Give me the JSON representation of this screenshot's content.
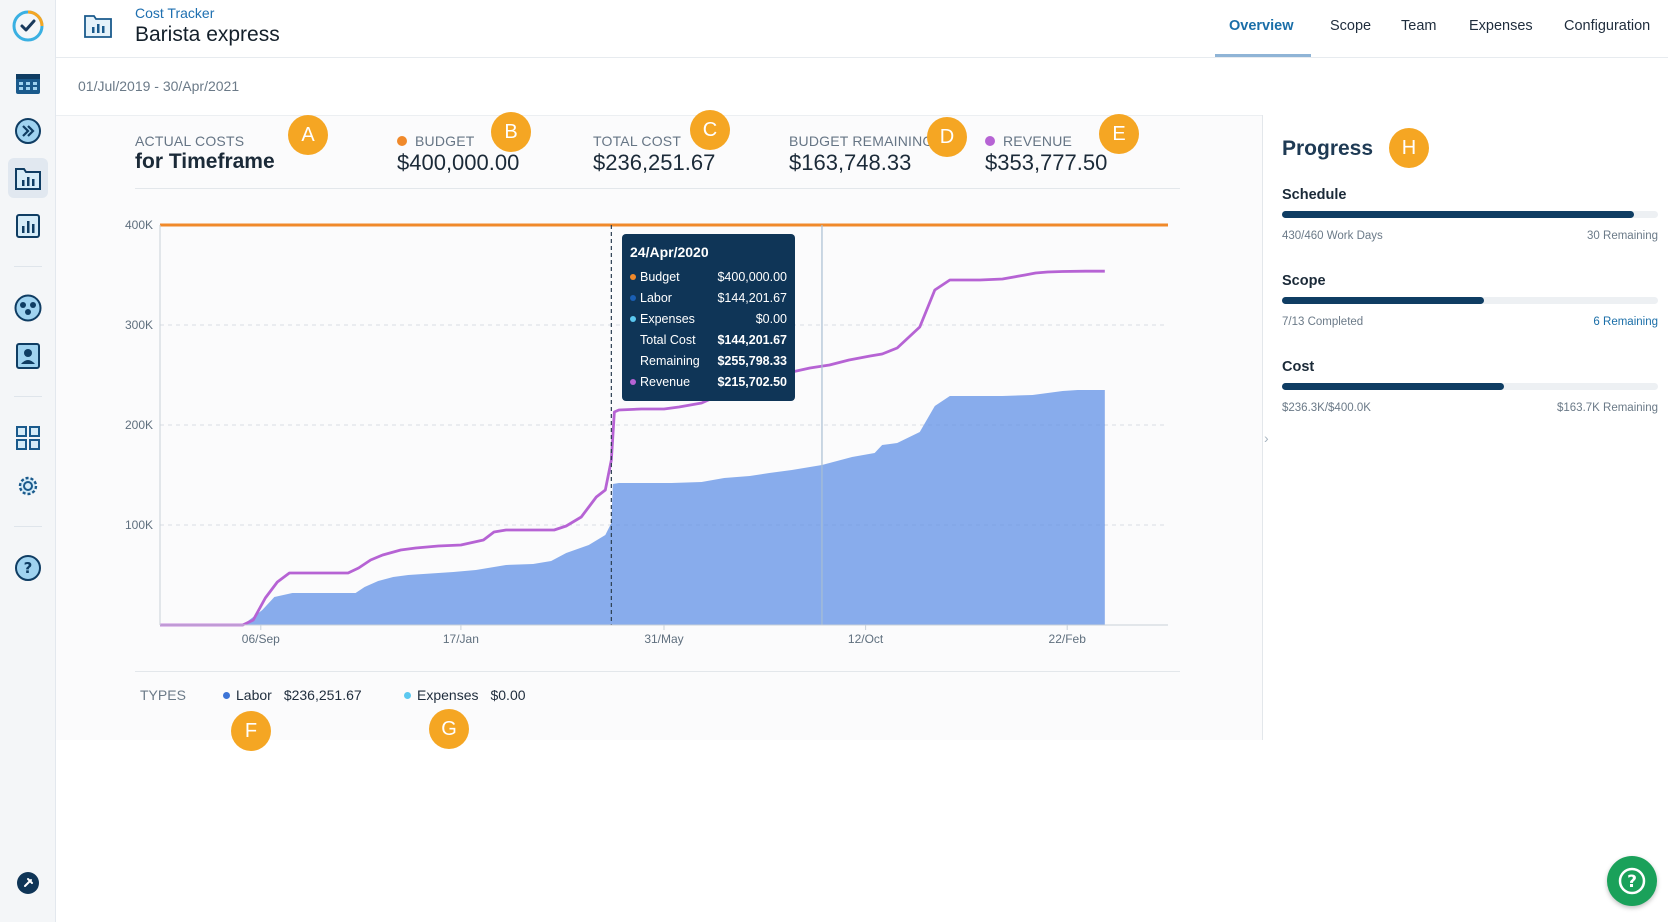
{
  "header": {
    "app_name": "Cost Tracker",
    "project_name": "Barista express",
    "tabs": [
      {
        "label": "Overview",
        "active": true
      },
      {
        "label": "Scope",
        "active": false
      },
      {
        "label": "Team",
        "active": false
      },
      {
        "label": "Expenses",
        "active": false
      },
      {
        "label": "Configuration",
        "active": false
      }
    ]
  },
  "date_range": "01/Jul/2019 - 30/Apr/2021",
  "rail": {
    "items": [
      "logo-icon",
      "calendar-icon",
      "fast-forward-icon",
      "folder-chart-icon",
      "bar-chart-icon",
      "team-icon",
      "contact-icon",
      "grid-icon",
      "gear-icon",
      "help-icon",
      "pin-icon"
    ]
  },
  "stats": {
    "actual_label": "ACTUAL COSTS",
    "actual_sub": "for Timeframe",
    "budget_label": "BUDGET",
    "budget_value": "$400,000.00",
    "total_cost_label": "TOTAL COST",
    "total_cost_value": "$236,251.67",
    "remaining_label": "BUDGET REMAINING",
    "remaining_value": "$163,748.33",
    "revenue_label": "REVENUE",
    "revenue_value": "$353,777.50"
  },
  "markers": [
    "A",
    "B",
    "C",
    "D",
    "E",
    "F",
    "G",
    "H"
  ],
  "colors": {
    "budget": "#f0892a",
    "labor": "#5b8ee6",
    "expenses": "#5bc8f0",
    "revenue": "#b663d4",
    "marker": "#f5a623",
    "navy": "#0f3557"
  },
  "chart_data": {
    "type": "area",
    "title": "",
    "xlabel": "",
    "ylabel": "",
    "x_tick_labels": [
      "06/Sep",
      "17/Jan",
      "31/May",
      "12/Oct",
      "22/Feb"
    ],
    "x_tick_days": [
      67,
      200,
      335,
      469,
      603
    ],
    "x_range_days": [
      0,
      670
    ],
    "y_ticks": [
      100000,
      200000,
      300000,
      400000
    ],
    "y_tick_labels": [
      "100K",
      "200K",
      "300K",
      "400K"
    ],
    "ylim": [
      0,
      400000
    ],
    "grid": true,
    "budget_line": 400000,
    "series": [
      {
        "name": "Labor",
        "kind": "area",
        "x": [
          0,
          55,
          68,
          76,
          88,
          100,
          130,
          136,
          145,
          155,
          165,
          175,
          185,
          195,
          210,
          230,
          248,
          260,
          270,
          285,
          296,
          300,
          301,
          305,
          320,
          340,
          360,
          375,
          392,
          405,
          420,
          440,
          460,
          475,
          480,
          490,
          505,
          515,
          525,
          545,
          560,
          580,
          590,
          600,
          610,
          625,
          628
        ],
        "y": [
          0,
          0,
          15000,
          28000,
          32000,
          32000,
          32000,
          38000,
          44000,
          48000,
          50000,
          51000,
          52000,
          53000,
          55000,
          60000,
          61000,
          64000,
          72000,
          80000,
          90000,
          102000,
          141000,
          142000,
          142000,
          142000,
          143000,
          147000,
          149000,
          152000,
          155000,
          160000,
          168000,
          172000,
          180000,
          182000,
          193000,
          219000,
          229000,
          229000,
          229000,
          230000,
          232000,
          234000,
          235000,
          235000,
          235000
        ]
      },
      {
        "name": "Expenses",
        "kind": "area",
        "x": [
          0,
          628
        ],
        "y": [
          0,
          0
        ]
      },
      {
        "name": "Revenue",
        "kind": "line",
        "x": [
          0,
          55,
          62,
          70,
          78,
          86,
          100,
          125,
          132,
          140,
          148,
          160,
          170,
          185,
          200,
          215,
          222,
          230,
          245,
          262,
          270,
          280,
          285,
          290,
          296,
          300,
          302,
          305,
          320,
          335,
          345,
          360,
          375,
          392,
          400,
          410,
          420,
          432,
          445,
          458,
          465,
          472,
          480,
          490,
          505,
          515,
          525,
          545,
          560,
          575,
          582,
          590,
          600,
          615,
          628
        ],
        "y": [
          0,
          0,
          5000,
          27000,
          43000,
          52000,
          52000,
          52000,
          57000,
          65000,
          70000,
          75000,
          77000,
          79000,
          80000,
          85000,
          93000,
          95000,
          95000,
          95000,
          99000,
          108000,
          118000,
          128000,
          135000,
          165000,
          213000,
          215000,
          216000,
          216000,
          218000,
          222000,
          232000,
          243000,
          247000,
          250000,
          253000,
          257000,
          260000,
          265000,
          267000,
          269000,
          271000,
          277000,
          298000,
          335000,
          345000,
          345000,
          346000,
          350000,
          352000,
          353000,
          353500,
          353800,
          353800
        ]
      },
      {
        "name": "Budget",
        "kind": "line",
        "x": [
          0,
          670
        ],
        "y": [
          400000,
          400000
        ]
      }
    ],
    "cursor_day": 300,
    "cursor_label": "24/Apr/2020",
    "today_day": 440
  },
  "tooltip": {
    "date": "24/Apr/2020",
    "rows": [
      {
        "label": "Budget",
        "value": "$400,000.00",
        "dot": "#f0892a",
        "bold": false
      },
      {
        "label": "Labor",
        "value": "$144,201.67",
        "dot": "#1a5fb4",
        "bold": false
      },
      {
        "label": "Expenses",
        "value": "$0.00",
        "dot": "#5bc8f0",
        "bold": false
      },
      {
        "label": "Total Cost",
        "value": "$144,201.67",
        "dot": "",
        "bold": true
      },
      {
        "label": "Remaining",
        "value": "$255,798.33",
        "dot": "",
        "bold": true
      },
      {
        "label": "Revenue",
        "value": "$215,702.50",
        "dot": "#b663d4",
        "bold": true
      }
    ]
  },
  "types": {
    "label": "TYPES",
    "items": [
      {
        "name": "Labor",
        "value": "$236,251.67"
      },
      {
        "name": "Expenses",
        "value": "$0.00"
      }
    ]
  },
  "progress": {
    "title": "Progress",
    "items": [
      {
        "label": "Schedule",
        "fraction": 0.935,
        "left": "430/460 Work Days",
        "right": "30 Remaining",
        "right_is_link": false
      },
      {
        "label": "Scope",
        "fraction": 0.538,
        "left": "7/13 Completed",
        "right": "6 Remaining",
        "right_is_link": true
      },
      {
        "label": "Cost",
        "fraction": 0.591,
        "left": "$236.3K/$400.0K",
        "right": "$163.7K Remaining",
        "right_is_link": false
      }
    ]
  }
}
